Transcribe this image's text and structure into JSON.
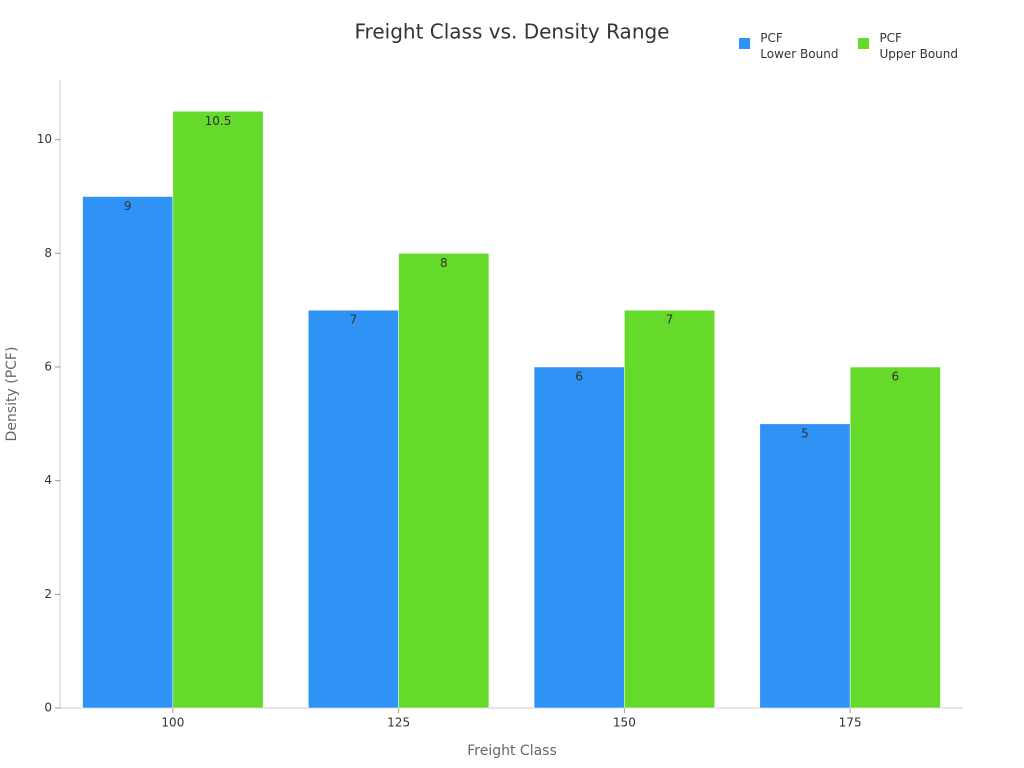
{
  "chart_data": {
    "type": "bar",
    "title": "Freight Class vs. Density Range",
    "x_label": "Freight Class",
    "y_label": "Density (PCF)",
    "categories": [
      "100",
      "125",
      "150",
      "175"
    ],
    "series": [
      {
        "name": "PCF\nLower Bound",
        "color": "#2f92f5",
        "values": [
          9,
          7,
          6,
          5
        ]
      },
      {
        "name": "PCF\nUpper Bound",
        "color": "#66da2a",
        "values": [
          10.5,
          8,
          7,
          6
        ]
      }
    ],
    "ylim": [
      0,
      11.05
    ],
    "yticks": [
      0,
      2,
      4,
      6,
      8,
      10
    ],
    "grid": false
  }
}
